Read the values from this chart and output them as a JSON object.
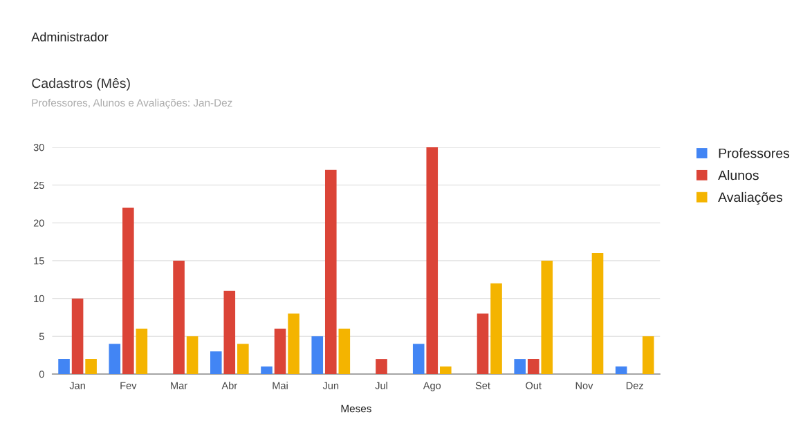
{
  "chart_data": {
    "type": "bar",
    "title": "Cadastros (Mês)",
    "subtitle": "Professores, Alunos e Avaliações: Jan-Dez",
    "xlabel": "Meses",
    "annotations": [
      "Administrador"
    ],
    "categories": [
      "Jan",
      "Fev",
      "Mar",
      "Abr",
      "Mai",
      "Jun",
      "Jul",
      "Ago",
      "Set",
      "Out",
      "Nov",
      "Dez"
    ],
    "series": [
      {
        "name": "Professores",
        "color": "#4285f4",
        "values": [
          2,
          4,
          0,
          3,
          1,
          5,
          0,
          4,
          0,
          2,
          0,
          1
        ]
      },
      {
        "name": "Alunos",
        "color": "#db4437",
        "values": [
          10,
          22,
          15,
          11,
          6,
          27,
          2,
          30,
          8,
          2,
          0,
          0
        ]
      },
      {
        "name": "Avaliações",
        "color": "#f4b400",
        "values": [
          2,
          6,
          5,
          4,
          8,
          6,
          0,
          1,
          12,
          15,
          16,
          5
        ]
      }
    ],
    "ylim": [
      0,
      30
    ],
    "yticks": [
      0,
      5,
      10,
      15,
      20,
      25,
      30
    ],
    "grid": "y",
    "legend": "top right"
  }
}
